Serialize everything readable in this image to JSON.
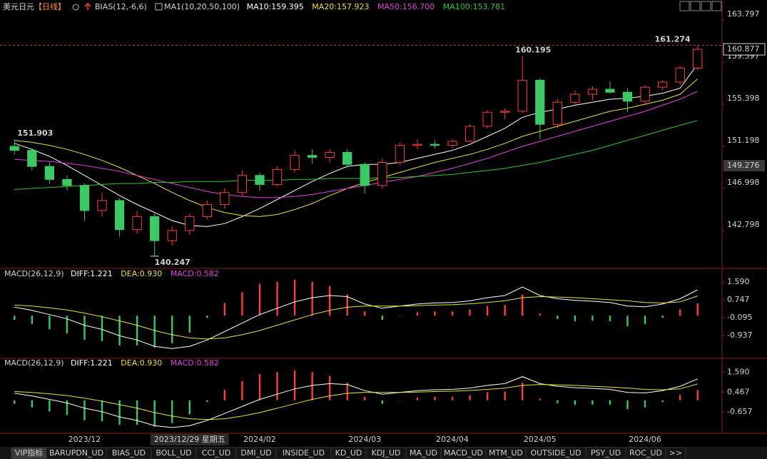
{
  "chart_data": [
    {
      "type": "candlestick",
      "title": "美元日元",
      "period": "【日线】",
      "indicator": "BIAS(12,-6,6)",
      "ma_label": "MA1(10,20,50,100)",
      "categories": [
        null,
        null,
        null,
        null,
        "2023/12",
        null,
        null,
        null,
        null,
        null,
        "2023/12/29 星期五",
        null,
        null,
        null,
        "2024/02",
        null,
        null,
        null,
        null,
        null,
        "2024/03",
        null,
        null,
        null,
        null,
        "2024/04",
        null,
        null,
        null,
        null,
        "2024/05",
        null,
        null,
        null,
        null,
        null,
        "2024/06",
        null,
        null,
        null
      ],
      "crosshair": {
        "date": "2023/12/29 星期五",
        "price": 149.276
      },
      "up_color": "#ff3c3c",
      "down_color": "#3cc864",
      "ylim": [
        139.1,
        164.94
      ],
      "yticks": [
        163.797,
        159.597,
        155.398,
        151.198,
        146.998,
        142.798
      ],
      "ohlc": [
        [
          151.2,
          151.903,
          150.4,
          150.8
        ],
        [
          150.8,
          151.0,
          148.8,
          149.2
        ],
        [
          149.2,
          149.6,
          147.5,
          147.9
        ],
        [
          147.9,
          148.3,
          146.8,
          147.3
        ],
        [
          147.3,
          147.5,
          143.8,
          144.8
        ],
        [
          144.8,
          146.6,
          144.2,
          145.8
        ],
        [
          145.8,
          146.0,
          142.2,
          142.9
        ],
        [
          142.9,
          144.8,
          142.5,
          144.2
        ],
        [
          144.2,
          144.5,
          140.247,
          141.8
        ],
        [
          141.8,
          143.2,
          141.3,
          142.8
        ],
        [
          142.8,
          144.5,
          142.4,
          144.2
        ],
        [
          144.2,
          145.8,
          143.9,
          145.4
        ],
        [
          145.4,
          147.0,
          145.0,
          146.6
        ],
        [
          146.6,
          148.8,
          146.2,
          148.3
        ],
        [
          148.3,
          148.6,
          146.8,
          147.4
        ],
        [
          147.4,
          149.2,
          147.2,
          148.9
        ],
        [
          148.9,
          150.8,
          148.6,
          150.3
        ],
        [
          150.3,
          150.9,
          149.5,
          150.1
        ],
        [
          150.1,
          150.9,
          149.6,
          150.6
        ],
        [
          150.6,
          150.9,
          149.1,
          149.4
        ],
        [
          149.4,
          149.6,
          146.5,
          147.3
        ],
        [
          147.3,
          150.0,
          147.0,
          149.6
        ],
        [
          149.6,
          151.6,
          149.3,
          151.3
        ],
        [
          151.3,
          151.9,
          150.9,
          151.4
        ],
        [
          151.4,
          151.8,
          151.0,
          151.3
        ],
        [
          151.3,
          151.9,
          151.0,
          151.7
        ],
        [
          151.7,
          153.4,
          151.6,
          153.2
        ],
        [
          153.2,
          154.8,
          153.0,
          154.6
        ],
        [
          154.6,
          155.0,
          153.9,
          154.7
        ],
        [
          154.7,
          160.195,
          154.5,
          157.8
        ],
        [
          157.8,
          158.0,
          151.9,
          153.4
        ],
        [
          153.4,
          155.9,
          153.0,
          155.6
        ],
        [
          155.6,
          156.8,
          155.2,
          156.4
        ],
        [
          156.4,
          157.2,
          155.8,
          156.9
        ],
        [
          156.9,
          157.7,
          156.5,
          156.6
        ],
        [
          156.6,
          157.0,
          154.6,
          155.7
        ],
        [
          155.7,
          157.3,
          155.3,
          157.1
        ],
        [
          157.1,
          157.8,
          156.8,
          157.6
        ],
        [
          157.6,
          159.2,
          157.3,
          159.0
        ],
        [
          159.0,
          161.274,
          158.8,
          160.877
        ]
      ],
      "series": [
        {
          "name": "MA10:",
          "color": "#ffffff",
          "values": [
            151.5,
            150.9,
            150.2,
            149.3,
            148.3,
            147.3,
            146.3,
            145.4,
            144.6,
            143.8,
            143.3,
            143.2,
            143.5,
            144.2,
            145.0,
            145.9,
            146.8,
            147.7,
            148.5,
            149.2,
            149.4,
            149.4,
            149.6,
            150.0,
            150.4,
            150.8,
            151.4,
            152.2,
            153.0,
            154.1,
            154.6,
            154.9,
            155.3,
            155.6,
            155.9,
            156.0,
            156.2,
            156.5,
            157.0,
            159.395
          ]
        },
        {
          "name": "MA20:",
          "color": "#e8e040",
          "values": [
            151.8,
            151.6,
            151.3,
            150.9,
            150.4,
            149.8,
            149.1,
            148.3,
            147.5,
            146.6,
            145.8,
            145.1,
            144.6,
            144.3,
            144.2,
            144.4,
            144.9,
            145.5,
            146.3,
            147.0,
            147.6,
            148.1,
            148.6,
            149.1,
            149.6,
            150.0,
            150.4,
            150.9,
            151.5,
            152.2,
            152.7,
            153.2,
            153.7,
            154.2,
            154.7,
            155.0,
            155.4,
            155.8,
            156.4,
            157.923
          ]
        },
        {
          "name": "MA50:",
          "color": "#e040e0",
          "values": [
            149.9,
            149.8,
            149.7,
            149.5,
            149.3,
            149.0,
            148.7,
            148.3,
            147.9,
            147.5,
            147.1,
            146.7,
            146.4,
            146.2,
            146.1,
            146.1,
            146.2,
            146.4,
            146.7,
            147.0,
            147.3,
            147.6,
            147.9,
            148.2,
            148.6,
            149.0,
            149.5,
            150.0,
            150.6,
            151.2,
            151.7,
            152.2,
            152.7,
            153.2,
            153.7,
            154.2,
            154.7,
            155.3,
            155.9,
            156.7
          ],
          "value_labels": [
            null,
            null,
            null,
            null,
            null,
            null,
            null,
            null,
            null,
            null,
            null,
            null,
            null,
            null,
            null,
            null,
            null,
            null,
            null,
            null,
            null,
            null,
            null,
            null,
            null,
            null,
            null,
            null,
            null,
            null,
            null,
            null,
            null,
            null,
            null,
            null,
            null,
            null,
            null,
            "156.700"
          ]
        },
        {
          "name": "MA100:",
          "color": "#30c830",
          "values": [
            146.9,
            147.0,
            147.1,
            147.2,
            147.3,
            147.4,
            147.5,
            147.5,
            147.6,
            147.6,
            147.7,
            147.7,
            147.7,
            147.8,
            147.8,
            147.8,
            147.9,
            147.9,
            148.0,
            148.0,
            148.0,
            148.1,
            148.1,
            148.2,
            148.3,
            148.4,
            148.6,
            148.8,
            149.0,
            149.3,
            149.6,
            150.0,
            150.4,
            150.8,
            151.3,
            151.8,
            152.3,
            152.8,
            153.3,
            153.781
          ]
        }
      ]
    },
    {
      "type": "macd",
      "title": "MACD(26,12,9)",
      "up_color": "#ff3c3c",
      "down_color": "#3cc864",
      "ylim": [
        -1.947,
        1.927
      ],
      "yticks": [
        {
          "value": 1.59,
          "label": "1.590"
        },
        0.747,
        -0.095,
        -0.937
      ],
      "series": [
        {
          "name": "DIFF:",
          "color": "#ffffff",
          "style": "line",
          "values": [
            0.4,
            0.25,
            0.05,
            -0.15,
            -0.45,
            -0.65,
            -0.95,
            -1.15,
            -1.45,
            -1.55,
            -1.45,
            -1.15,
            -0.75,
            -0.35,
            0.05,
            0.35,
            0.65,
            0.85,
            0.95,
            0.9,
            0.55,
            0.35,
            0.45,
            0.55,
            0.6,
            0.62,
            0.7,
            0.85,
            0.95,
            1.35,
            0.95,
            0.8,
            0.72,
            0.68,
            0.62,
            0.45,
            0.42,
            0.55,
            0.8,
            1.221
          ]
        },
        {
          "name": "DEA:",
          "color": "#e8e040",
          "style": "line",
          "values": [
            0.5,
            0.45,
            0.37,
            0.27,
            0.12,
            -0.05,
            -0.25,
            -0.45,
            -0.7,
            -0.9,
            -1.05,
            -1.1,
            -1.05,
            -0.9,
            -0.7,
            -0.45,
            -0.2,
            0.05,
            0.25,
            0.4,
            0.45,
            0.45,
            0.45,
            0.47,
            0.5,
            0.52,
            0.56,
            0.62,
            0.7,
            0.85,
            0.9,
            0.88,
            0.85,
            0.8,
            0.75,
            0.7,
            0.62,
            0.6,
            0.65,
            0.93
          ],
          "value_labels": [
            null,
            null,
            null,
            null,
            null,
            null,
            null,
            null,
            null,
            null,
            null,
            null,
            null,
            null,
            null,
            null,
            null,
            null,
            null,
            null,
            null,
            null,
            null,
            null,
            null,
            null,
            null,
            null,
            null,
            null,
            null,
            null,
            null,
            null,
            null,
            null,
            null,
            null,
            null,
            "0.930"
          ]
        },
        {
          "name": "MACD:",
          "color": "#e040e0",
          "style": "bar",
          "values": [
            -0.2,
            -0.4,
            -0.64,
            -0.84,
            -1.14,
            -1.2,
            -1.4,
            -1.4,
            -1.5,
            -1.3,
            -0.8,
            -0.1,
            0.6,
            1.1,
            1.5,
            1.6,
            1.7,
            1.6,
            1.4,
            1.0,
            0.2,
            -0.2,
            0,
            0.16,
            0.2,
            0.2,
            0.28,
            0.46,
            0.5,
            1.0,
            0.1,
            -0.16,
            -0.26,
            -0.24,
            -0.26,
            -0.5,
            -0.4,
            -0.1,
            0.3,
            0.582
          ]
        }
      ]
    },
    {
      "type": "macd",
      "title": "MACD(26,12,9)",
      "up_color": "#ff3c3c",
      "down_color": "#3cc864",
      "ylim": [
        -1.759,
        1.984
      ],
      "yticks": [
        {
          "value": 1.59,
          "label": "1.590"
        },
        0.467,
        -0.657
      ],
      "series": [
        {
          "name": "DIFF:",
          "color": "#ffffff",
          "style": "line",
          "values": [
            0.4,
            0.25,
            0.05,
            -0.15,
            -0.45,
            -0.65,
            -0.95,
            -1.15,
            -1.45,
            -1.55,
            -1.45,
            -1.15,
            -0.75,
            -0.35,
            0.05,
            0.35,
            0.65,
            0.85,
            0.95,
            0.9,
            0.55,
            0.35,
            0.45,
            0.55,
            0.6,
            0.62,
            0.7,
            0.85,
            0.95,
            1.35,
            0.95,
            0.8,
            0.72,
            0.68,
            0.62,
            0.45,
            0.42,
            0.55,
            0.8,
            1.221
          ]
        },
        {
          "name": "DEA:",
          "color": "#e8e040",
          "style": "line",
          "values": [
            0.5,
            0.45,
            0.37,
            0.27,
            0.12,
            -0.05,
            -0.25,
            -0.45,
            -0.7,
            -0.9,
            -1.05,
            -1.1,
            -1.05,
            -0.9,
            -0.7,
            -0.45,
            -0.2,
            0.05,
            0.25,
            0.4,
            0.45,
            0.45,
            0.45,
            0.47,
            0.5,
            0.52,
            0.56,
            0.62,
            0.7,
            0.85,
            0.9,
            0.88,
            0.85,
            0.8,
            0.75,
            0.7,
            0.62,
            0.6,
            0.65,
            0.93
          ],
          "value_labels": [
            null,
            null,
            null,
            null,
            null,
            null,
            null,
            null,
            null,
            null,
            null,
            null,
            null,
            null,
            null,
            null,
            null,
            null,
            null,
            null,
            null,
            null,
            null,
            null,
            null,
            null,
            null,
            null,
            null,
            null,
            null,
            null,
            null,
            null,
            null,
            null,
            null,
            null,
            null,
            "0.930"
          ]
        },
        {
          "name": "MACD:",
          "color": "#e040e0",
          "style": "bar",
          "values": [
            -0.2,
            -0.4,
            -0.64,
            -0.84,
            -1.14,
            -1.2,
            -1.4,
            -1.4,
            -1.5,
            -1.3,
            -0.8,
            -0.1,
            0.6,
            1.1,
            1.5,
            1.6,
            1.7,
            1.6,
            1.4,
            1.0,
            0.2,
            -0.2,
            0,
            0.16,
            0.2,
            0.2,
            0.28,
            0.46,
            0.5,
            1.0,
            0.1,
            -0.16,
            -0.26,
            -0.24,
            -0.26,
            -0.5,
            -0.4,
            -0.1,
            0.3,
            0.582
          ]
        }
      ]
    }
  ],
  "tabs": [
    "VIP指标",
    "BARUPDN_UD",
    "BIAS_UD",
    "BOLL_UD",
    "CCI_UD",
    "DMI_UD",
    "INSIDE_UD",
    "KD_UD",
    "KDJ_UD",
    "MA_UD",
    "MACD_UD",
    "MTM_UD",
    "OUTSIDE_UD",
    "PSY_UD",
    "ROC_UD",
    ">>"
  ]
}
